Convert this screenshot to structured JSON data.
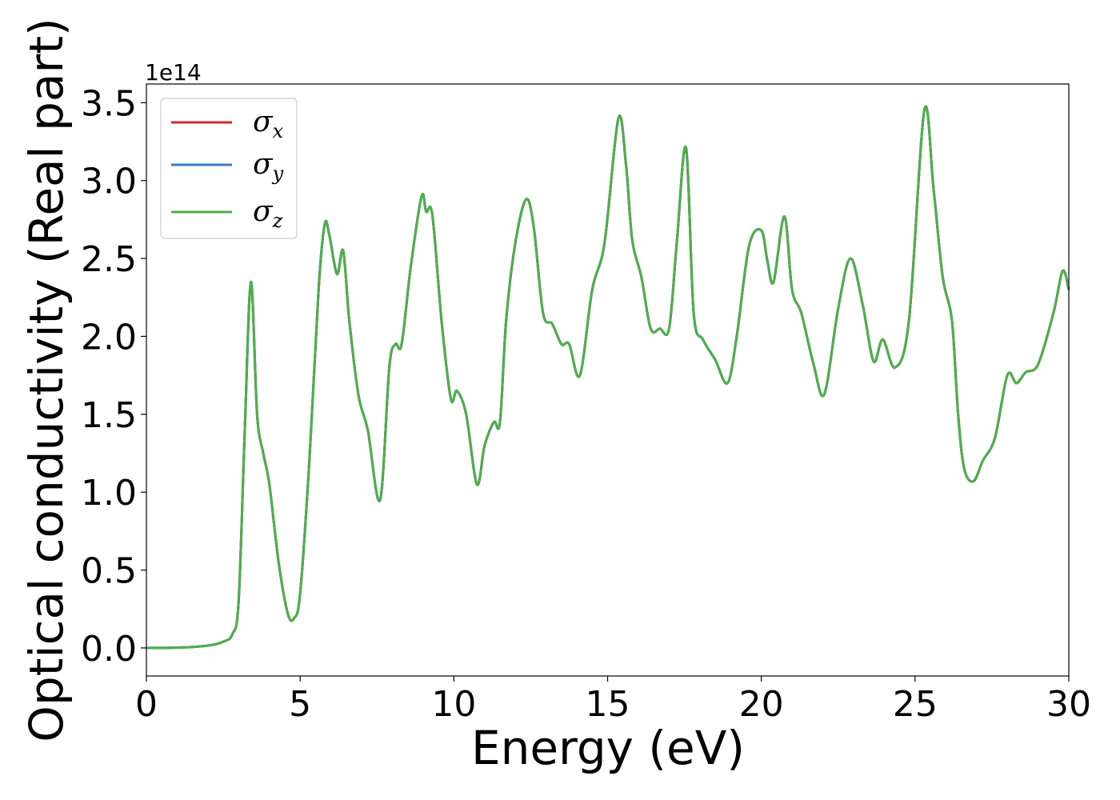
{
  "chart_data": {
    "type": "line",
    "xlabel": "Energy (eV)",
    "ylabel": "Optical conductivity (Real part)",
    "y_offset_label": "1e14",
    "xlim": [
      0,
      30
    ],
    "ylim": [
      -0.18,
      3.62
    ],
    "x_ticks": [
      0,
      5,
      10,
      15,
      20,
      25,
      30
    ],
    "x_tick_labels": [
      "0",
      "5",
      "10",
      "15",
      "20",
      "25",
      "30"
    ],
    "y_ticks": [
      0.0,
      0.5,
      1.0,
      1.5,
      2.0,
      2.5,
      3.0,
      3.5
    ],
    "y_tick_labels": [
      "0.0",
      "0.5",
      "1.0",
      "1.5",
      "2.0",
      "2.5",
      "3.0",
      "3.5"
    ],
    "grid": false,
    "legend_position": "top-left",
    "colors": {
      "sigma_x": "#d62728",
      "sigma_y": "#3a7ebf",
      "sigma_z": "#4daf4a"
    },
    "x": [
      0,
      1,
      2,
      2.5,
      2.8,
      3.0,
      3.2,
      3.4,
      3.6,
      3.8,
      4.0,
      4.3,
      4.6,
      4.8,
      5.0,
      5.3,
      5.6,
      5.8,
      5.95,
      6.2,
      6.4,
      6.6,
      6.9,
      7.2,
      7.6,
      7.9,
      8.1,
      8.3,
      8.6,
      8.95,
      9.1,
      9.3,
      9.6,
      9.9,
      10.1,
      10.4,
      10.75,
      11.0,
      11.3,
      11.5,
      11.7,
      12.0,
      12.35,
      12.6,
      12.9,
      13.2,
      13.5,
      13.75,
      14.1,
      14.5,
      14.9,
      15.35,
      15.6,
      15.8,
      16.1,
      16.4,
      16.7,
      17.0,
      17.25,
      17.55,
      17.8,
      18.1,
      18.5,
      18.9,
      19.2,
      19.6,
      20.0,
      20.2,
      20.4,
      20.75,
      21.0,
      21.3,
      21.7,
      22.05,
      22.5,
      22.9,
      23.3,
      23.65,
      23.95,
      24.35,
      24.8,
      25.3,
      25.6,
      25.9,
      26.2,
      26.4,
      26.6,
      26.9,
      27.2,
      27.6,
      28.0,
      28.3,
      28.6,
      29.0,
      29.5,
      29.8,
      30.0
    ],
    "series": [
      {
        "name": "σx",
        "label_base": "σ",
        "label_sub": "x",
        "values": [
          0,
          0.002,
          0.015,
          0.04,
          0.09,
          0.3,
          1.4,
          2.35,
          1.5,
          1.25,
          1.05,
          0.55,
          0.22,
          0.19,
          0.35,
          1.2,
          2.3,
          2.72,
          2.65,
          2.4,
          2.55,
          2.1,
          1.62,
          1.4,
          0.95,
          1.8,
          1.95,
          1.95,
          2.45,
          2.9,
          2.8,
          2.78,
          2.1,
          1.6,
          1.65,
          1.5,
          1.05,
          1.3,
          1.45,
          1.45,
          2.1,
          2.6,
          2.88,
          2.7,
          2.15,
          2.08,
          1.95,
          1.95,
          1.75,
          2.3,
          2.6,
          3.4,
          3.1,
          2.62,
          2.38,
          2.05,
          2.05,
          2.05,
          2.6,
          3.21,
          2.15,
          1.98,
          1.85,
          1.7,
          2.0,
          2.58,
          2.68,
          2.48,
          2.35,
          2.77,
          2.3,
          2.15,
          1.82,
          1.63,
          2.18,
          2.5,
          2.2,
          1.84,
          1.98,
          1.8,
          2.1,
          3.45,
          2.95,
          2.38,
          2.1,
          1.5,
          1.15,
          1.07,
          1.2,
          1.35,
          1.75,
          1.7,
          1.77,
          1.82,
          2.15,
          2.42,
          2.3
        ]
      },
      {
        "name": "σy",
        "label_base": "σ",
        "label_sub": "y",
        "values": [
          0,
          0.002,
          0.015,
          0.04,
          0.09,
          0.3,
          1.4,
          2.35,
          1.5,
          1.25,
          1.05,
          0.55,
          0.22,
          0.19,
          0.35,
          1.2,
          2.3,
          2.72,
          2.65,
          2.4,
          2.55,
          2.1,
          1.62,
          1.4,
          0.95,
          1.8,
          1.95,
          1.95,
          2.45,
          2.9,
          2.8,
          2.78,
          2.1,
          1.6,
          1.65,
          1.5,
          1.05,
          1.3,
          1.45,
          1.45,
          2.1,
          2.6,
          2.88,
          2.7,
          2.15,
          2.08,
          1.95,
          1.95,
          1.75,
          2.3,
          2.6,
          3.4,
          3.1,
          2.62,
          2.38,
          2.05,
          2.05,
          2.05,
          2.6,
          3.21,
          2.15,
          1.98,
          1.85,
          1.7,
          2.0,
          2.58,
          2.68,
          2.48,
          2.35,
          2.77,
          2.3,
          2.15,
          1.82,
          1.63,
          2.18,
          2.5,
          2.2,
          1.84,
          1.98,
          1.8,
          2.1,
          3.45,
          2.95,
          2.38,
          2.1,
          1.5,
          1.15,
          1.07,
          1.2,
          1.35,
          1.75,
          1.7,
          1.77,
          1.82,
          2.15,
          2.42,
          2.3
        ]
      },
      {
        "name": "σz",
        "label_base": "σ",
        "label_sub": "z",
        "values": [
          0,
          0.002,
          0.015,
          0.04,
          0.09,
          0.3,
          1.4,
          2.35,
          1.5,
          1.25,
          1.05,
          0.55,
          0.22,
          0.19,
          0.35,
          1.2,
          2.3,
          2.72,
          2.65,
          2.4,
          2.55,
          2.1,
          1.62,
          1.4,
          0.95,
          1.8,
          1.95,
          1.95,
          2.45,
          2.9,
          2.8,
          2.78,
          2.1,
          1.6,
          1.65,
          1.5,
          1.05,
          1.3,
          1.45,
          1.45,
          2.1,
          2.6,
          2.88,
          2.7,
          2.15,
          2.08,
          1.95,
          1.95,
          1.75,
          2.3,
          2.6,
          3.4,
          3.1,
          2.62,
          2.38,
          2.05,
          2.05,
          2.05,
          2.6,
          3.21,
          2.15,
          1.98,
          1.85,
          1.7,
          2.0,
          2.58,
          2.68,
          2.48,
          2.35,
          2.77,
          2.3,
          2.15,
          1.82,
          1.63,
          2.18,
          2.5,
          2.2,
          1.84,
          1.98,
          1.8,
          2.1,
          3.45,
          2.95,
          2.38,
          2.1,
          1.5,
          1.15,
          1.07,
          1.2,
          1.35,
          1.75,
          1.7,
          1.77,
          1.82,
          2.15,
          2.42,
          2.3
        ]
      }
    ]
  }
}
